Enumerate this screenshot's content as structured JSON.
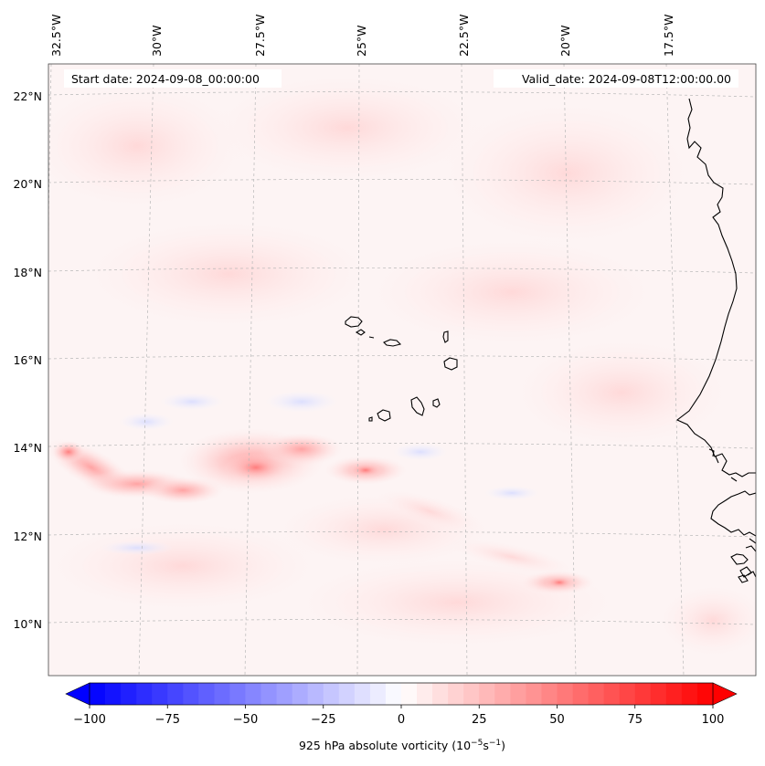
{
  "header": {
    "start_date": "Start date: 2024-09-08_00:00:00",
    "valid_date": "Valid_date: 2024-09-08T12:00:00.00"
  },
  "map": {
    "lon_ticks": [
      "32.5°W",
      "30°W",
      "27.5°W",
      "25°W",
      "22.5°W",
      "20°W",
      "17.5°W"
    ],
    "lat_ticks": [
      "22°N",
      "20°N",
      "18°N",
      "16°N",
      "14°N",
      "12°N",
      "10°N"
    ],
    "features": [
      "cabo-verde-islands",
      "west-africa-coastline"
    ],
    "gridlines": true
  },
  "colorbar": {
    "ticks": [
      "−100",
      "−75",
      "−50",
      "−25",
      "0",
      "25",
      "50",
      "75",
      "100"
    ],
    "label_main": "925 hPa absolute vorticity (10",
    "label_exp1": "−5",
    "label_mid": "s",
    "label_exp2": "−1",
    "label_end": ")",
    "min": -100,
    "max": 100,
    "colormap": "bwr",
    "extend": "both"
  },
  "chart_data": {
    "type": "heatmap",
    "title": "",
    "xlabel": "",
    "ylabel": "",
    "variable": "925 hPa absolute vorticity",
    "units": "10^-5 s^-1",
    "x_range_lon": [
      -33,
      -15.5
    ],
    "y_range_lat": [
      9,
      22.7
    ],
    "colorbar_range": [
      -100,
      100
    ],
    "features": [
      {
        "name": "vorticity band west",
        "lon": -32.2,
        "lat": 13.9,
        "value": 45
      },
      {
        "name": "vorticity band",
        "lon": -30.5,
        "lat": 13.2,
        "value": 35
      },
      {
        "name": "vorticity band",
        "lon": -29.2,
        "lat": 13.0,
        "value": 30
      },
      {
        "name": "vorticity maximum",
        "lon": -27.3,
        "lat": 13.6,
        "value": 35
      },
      {
        "name": "vorticity band east",
        "lon": -24.8,
        "lat": 13.5,
        "value": 28
      },
      {
        "name": "vorticity maximum south",
        "lon": -20.2,
        "lat": 10.9,
        "value": 32
      }
    ]
  }
}
